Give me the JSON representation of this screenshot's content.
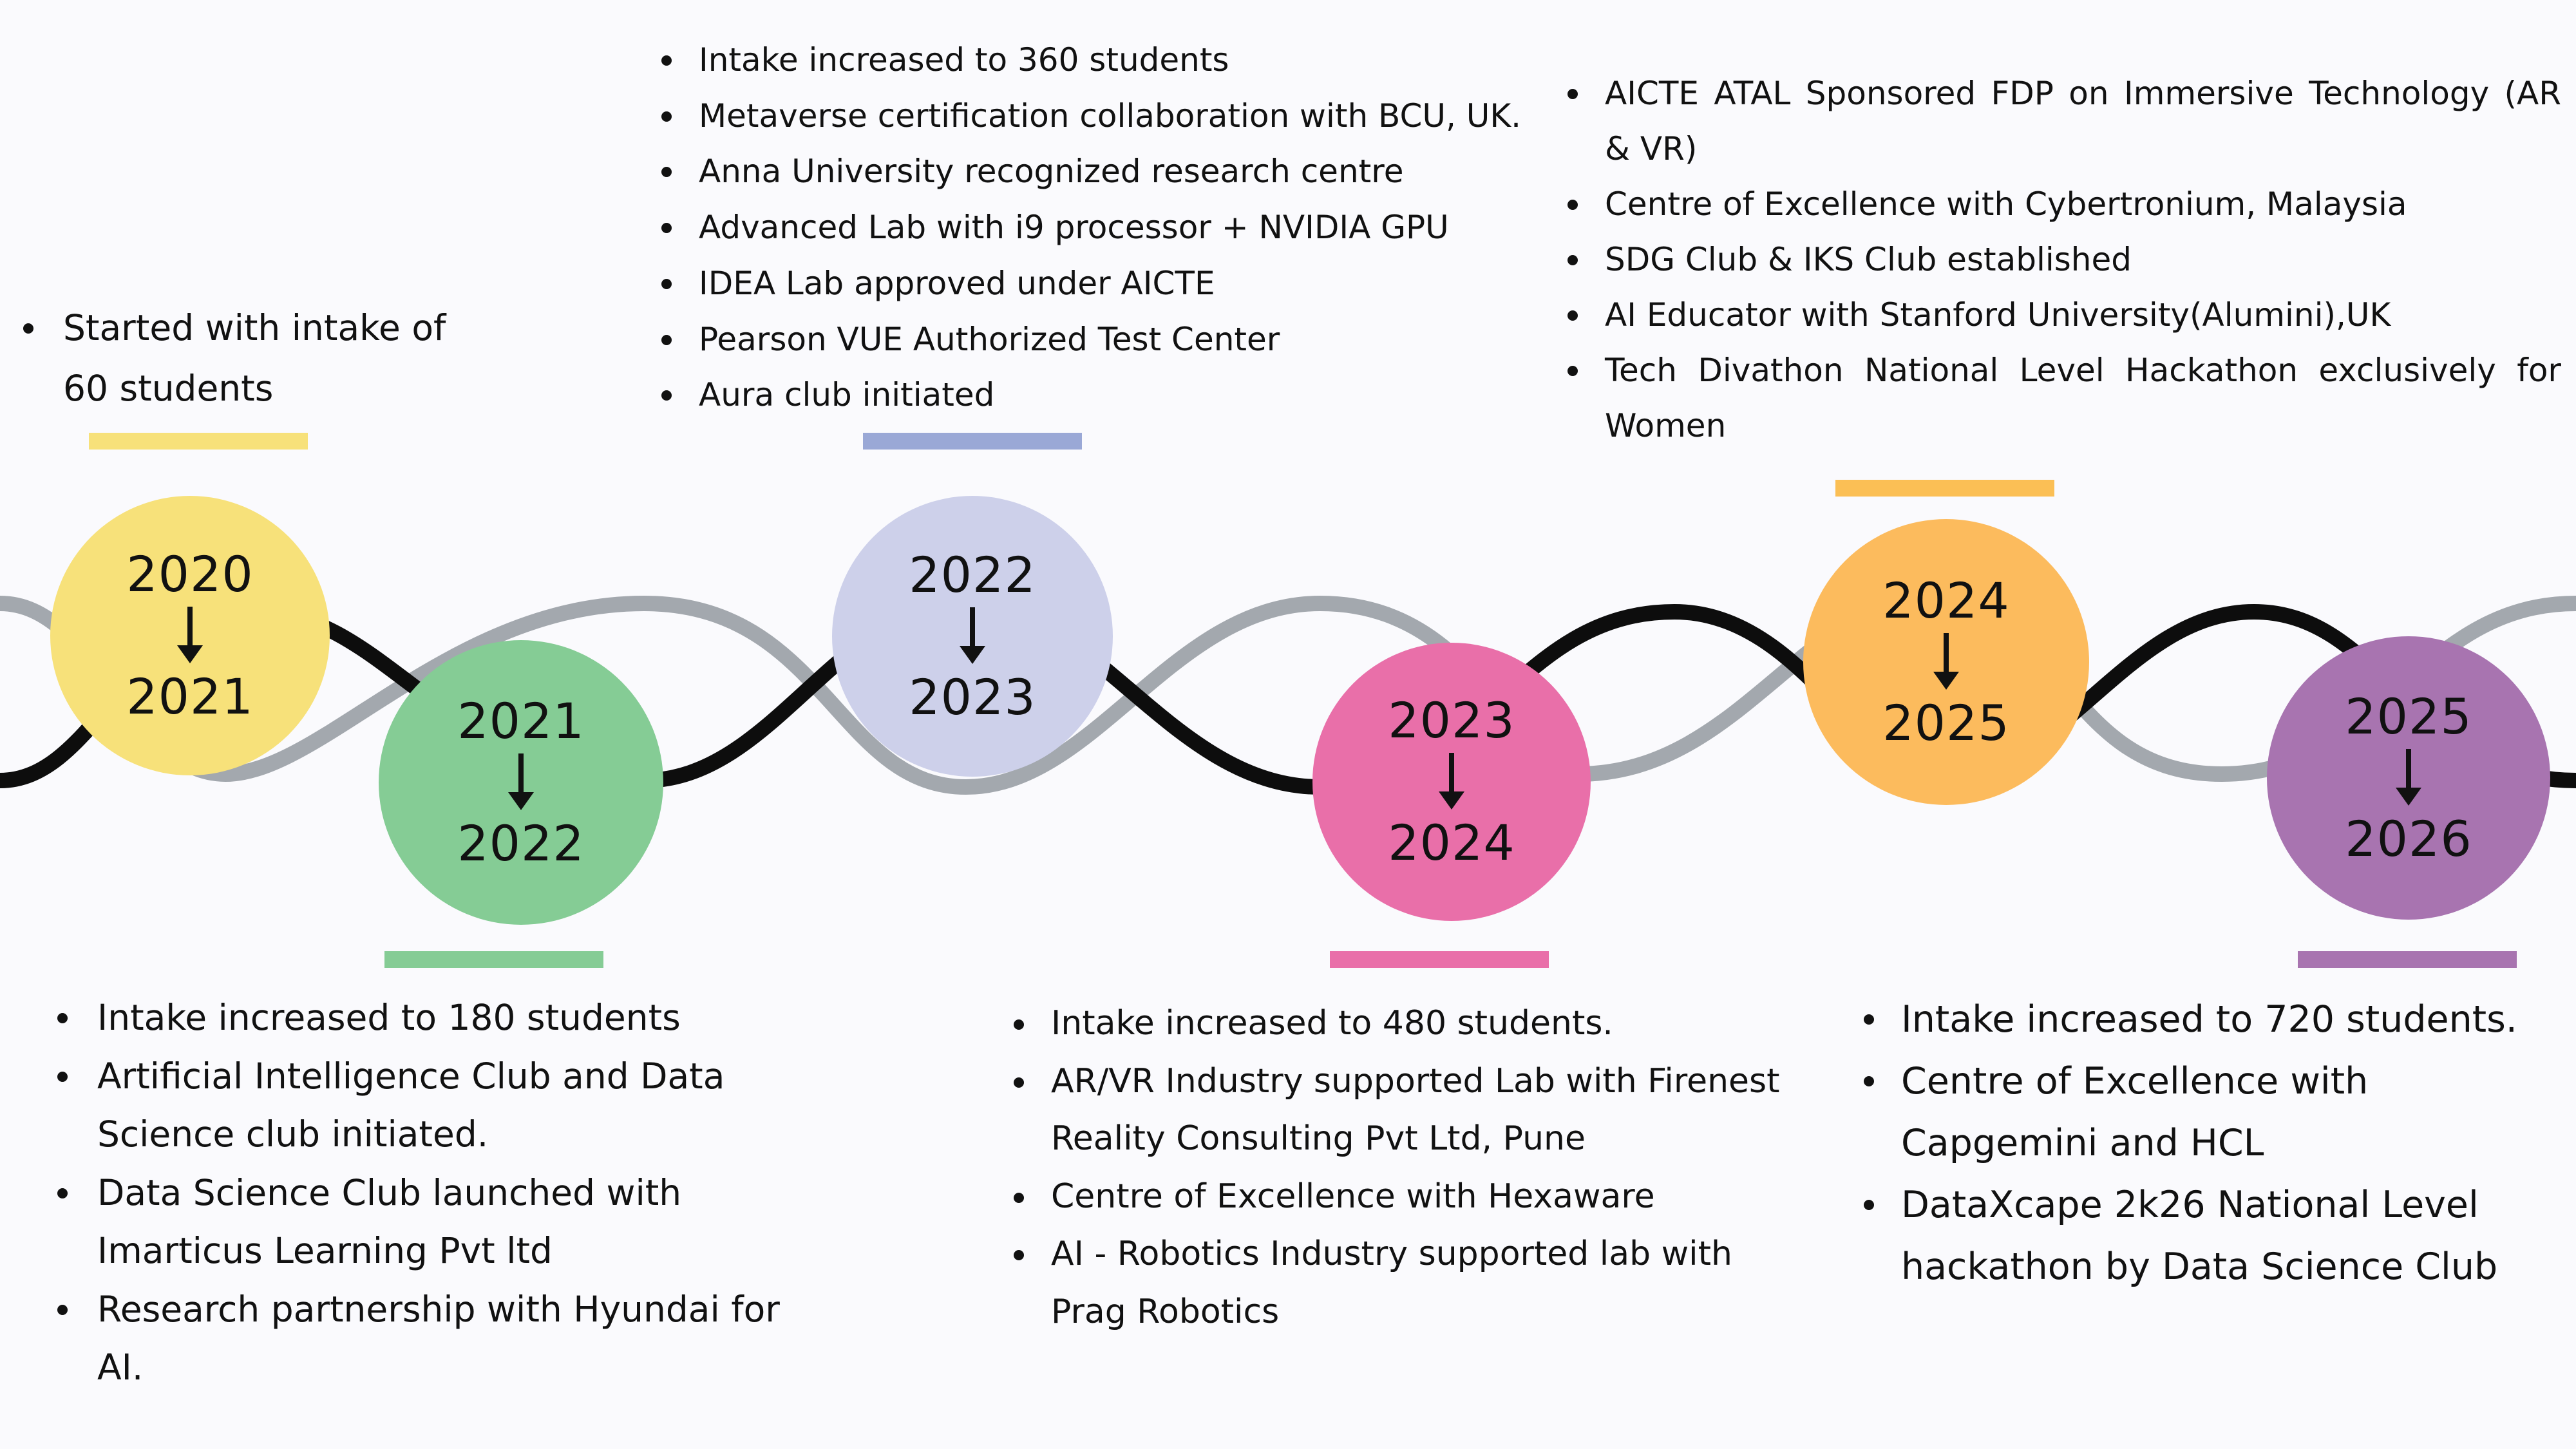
{
  "colors": {
    "wave_dark": "#0d0d0d",
    "wave_light": "#a3a8ae",
    "p2020": "#f7e17a",
    "p2021": "#85cc95",
    "p2022": "#cdd0ea",
    "p2023": "#e96fa9",
    "p2024": "#fcbb5d",
    "p2025": "#a874b0",
    "bar2022": "#9aa8d6",
    "bar2024": "#fbbf55"
  },
  "periods": [
    {
      "id": "2020",
      "start": "2020",
      "end": "2021",
      "items": [
        "Started with intake of 60 students"
      ]
    },
    {
      "id": "2021",
      "start": "2021",
      "end": "2022",
      "items": [
        "Intake increased to 180 students",
        "Artificial Intelligence Club and Data Science club initiated.",
        "Data Science Club launched with Imarticus Learning Pvt ltd",
        "Research partnership with Hyundai for AI."
      ]
    },
    {
      "id": "2022",
      "start": "2022",
      "end": "2023",
      "items": [
        "Intake increased to 360 students",
        "Metaverse certification collaboration with BCU, UK.",
        "Anna University recognized research centre",
        "Advanced Lab with i9 processor + NVIDIA GPU",
        "IDEA Lab approved under AICTE",
        "Pearson VUE Authorized Test Center",
        "Aura club initiated"
      ]
    },
    {
      "id": "2023",
      "start": "2023",
      "end": "2024",
      "items": [
        "Intake increased to 480 students.",
        " AR/VR Industry supported Lab with Firenest Reality Consulting Pvt Ltd, Pune",
        "Centre of Excellence with Hexaware",
        "AI - Robotics Industry supported lab with Prag Robotics"
      ]
    },
    {
      "id": "2024",
      "start": "2024",
      "end": "2025",
      "items": [
        "AICTE ATAL Sponsored FDP on Immersive Technology (AR & VR)",
        "Centre of Excellence with Cybertronium, Malaysia",
        "SDG Club & IKS Club established",
        "AI Educator with  Stanford University(Alumini),UK",
        "Tech Divathon National Level Hackathon exclusively for Women"
      ]
    },
    {
      "id": "2025",
      "start": "2025",
      "end": "2026",
      "items": [
        "Intake increased to 720 students.",
        "Centre of Excellence with Capgemini and HCL",
        "DataXcape 2k26 National Level hackathon by Data Science Club"
      ]
    }
  ]
}
